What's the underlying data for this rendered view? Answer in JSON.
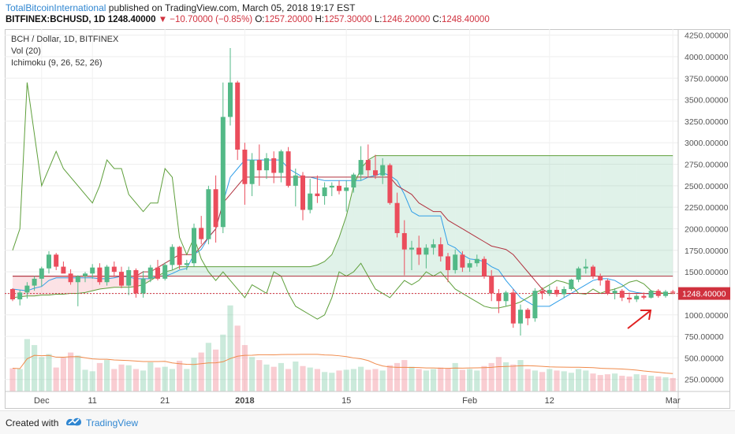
{
  "header": {
    "author": "TotalBitcoinInternational",
    "published_text": "published on TradingView.com, March 05, 2018 19:17 EST",
    "symbol": "BITFINEX:BCHUSD, 1D",
    "last_price": "1248.40000",
    "change": "▼ −10.70000 (−0.85%)",
    "open_label": "O:",
    "open": "1257.20000",
    "high_label": "H:",
    "high": "1257.30000",
    "low_label": "L:",
    "low": "1246.20000",
    "close_label": "C:",
    "close": "1248.40000"
  },
  "legend": {
    "title": "BCH / Dollar, 1D, BITFINEX",
    "volume": "Vol (20)",
    "ichimoku": "Ichimoku (9, 26, 52, 26)"
  },
  "footer": {
    "created_with": "Created with",
    "brand": "TradingView"
  },
  "chart_data": {
    "type": "candlestick",
    "title": "BCH / Dollar, 1D, BITFINEX",
    "y_ticks": [
      "250.00000",
      "500.00000",
      "750.00000",
      "1000.00000",
      "1250.00000",
      "1500.00000",
      "1750.00000",
      "2000.00000",
      "2250.00000",
      "2500.00000",
      "2750.00000",
      "3000.00000",
      "3250.00000",
      "3500.00000",
      "3750.00000",
      "4000.00000",
      "4250.00000"
    ],
    "y_tick_values": [
      250,
      500,
      750,
      1000,
      1250,
      1500,
      1750,
      2000,
      2250,
      2500,
      2750,
      3000,
      3250,
      3500,
      3750,
      4000,
      4250
    ],
    "ylim": [
      110,
      4320
    ],
    "last_price_label": "1248.40000",
    "last_price": 1248.4,
    "x_labels": [
      {
        "label": "Dec",
        "day": 4
      },
      {
        "label": "11",
        "day": 11
      },
      {
        "label": "21",
        "day": 21
      },
      {
        "label": "2018",
        "day": 32
      },
      {
        "label": "15",
        "day": 46
      },
      {
        "label": "Feb",
        "day": 63
      },
      {
        "label": "12",
        "day": 74
      },
      {
        "label": "Mar",
        "day": 91
      }
    ],
    "candles": [
      [
        1300,
        1310,
        1160,
        1180
      ],
      [
        1180,
        1290,
        1110,
        1260
      ],
      [
        1260,
        1380,
        1190,
        1340
      ],
      [
        1340,
        1450,
        1280,
        1420
      ],
      [
        1420,
        1560,
        1330,
        1540
      ],
      [
        1540,
        1740,
        1480,
        1700
      ],
      [
        1700,
        1720,
        1520,
        1560
      ],
      [
        1560,
        1620,
        1520,
        1480
      ],
      [
        1480,
        1530,
        1350,
        1380
      ],
      [
        1380,
        1460,
        1100,
        1450
      ],
      [
        1450,
        1500,
        1380,
        1480
      ],
      [
        1480,
        1590,
        1420,
        1550
      ],
      [
        1550,
        1600,
        1350,
        1380
      ],
      [
        1380,
        1580,
        1340,
        1560
      ],
      [
        1560,
        1620,
        1440,
        1500
      ],
      [
        1500,
        1560,
        1310,
        1340
      ],
      [
        1340,
        1560,
        1230,
        1520
      ],
      [
        1520,
        1540,
        1200,
        1250
      ],
      [
        1250,
        1510,
        1200,
        1420
      ],
      [
        1420,
        1580,
        1380,
        1550
      ],
      [
        1550,
        1640,
        1400,
        1420
      ],
      [
        1420,
        1610,
        1400,
        1580
      ],
      [
        1580,
        1820,
        1520,
        1790
      ],
      [
        1790,
        1800,
        1530,
        1580
      ],
      [
        1580,
        1640,
        1520,
        1600
      ],
      [
        1600,
        2060,
        1560,
        2010
      ],
      [
        2010,
        2150,
        1820,
        1880
      ],
      [
        1880,
        2500,
        1820,
        2460
      ],
      [
        2460,
        2620,
        1840,
        2020
      ],
      [
        2020,
        3700,
        1950,
        3300
      ],
      [
        3300,
        4100,
        3200,
        3700
      ],
      [
        3700,
        3720,
        2800,
        2920
      ],
      [
        2920,
        3000,
        2280,
        2520
      ],
      [
        2520,
        2880,
        2380,
        2800
      ],
      [
        2800,
        2980,
        2500,
        2680
      ],
      [
        2680,
        2880,
        2580,
        2820
      ],
      [
        2820,
        2900,
        2530,
        2650
      ],
      [
        2650,
        2920,
        2540,
        2900
      ],
      [
        2900,
        2950,
        2480,
        2500
      ],
      [
        2500,
        2700,
        2260,
        2620
      ],
      [
        2620,
        2660,
        2100,
        2220
      ],
      [
        2220,
        2580,
        2180,
        2410
      ],
      [
        2410,
        2620,
        2300,
        2380
      ],
      [
        2380,
        2540,
        2280,
        2480
      ],
      [
        2480,
        2540,
        2380,
        2500
      ],
      [
        2500,
        2560,
        2400,
        2440
      ],
      [
        2440,
        2560,
        2200,
        2480
      ],
      [
        2480,
        2650,
        2420,
        2630
      ],
      [
        2630,
        2960,
        2560,
        2800
      ],
      [
        2800,
        2980,
        2600,
        2680
      ],
      [
        2680,
        2860,
        2580,
        2620
      ],
      [
        2620,
        2820,
        2520,
        2740
      ],
      [
        2740,
        2760,
        2280,
        2300
      ],
      [
        2300,
        2420,
        1900,
        1950
      ],
      [
        1950,
        2100,
        1460,
        1760
      ],
      [
        1760,
        1860,
        1520,
        1780
      ],
      [
        1780,
        1920,
        1580,
        1700
      ],
      [
        1700,
        1820,
        1540,
        1780
      ],
      [
        1780,
        1880,
        1700,
        1820
      ],
      [
        1820,
        1900,
        1620,
        1680
      ],
      [
        1680,
        1720,
        1380,
        1520
      ],
      [
        1520,
        1760,
        1480,
        1700
      ],
      [
        1700,
        1740,
        1500,
        1550
      ],
      [
        1550,
        1640,
        1500,
        1600
      ],
      [
        1600,
        1700,
        1560,
        1650
      ],
      [
        1650,
        1680,
        1420,
        1450
      ],
      [
        1450,
        1520,
        1160,
        1250
      ],
      [
        1250,
        1300,
        1020,
        1160
      ],
      [
        1160,
        1280,
        1100,
        1260
      ],
      [
        1260,
        1300,
        850,
        900
      ],
      [
        900,
        1120,
        760,
        1060
      ],
      [
        1060,
        1080,
        880,
        960
      ],
      [
        960,
        1310,
        920,
        1280
      ],
      [
        1280,
        1320,
        1180,
        1250
      ],
      [
        1250,
        1340,
        1220,
        1290
      ],
      [
        1290,
        1330,
        1210,
        1240
      ],
      [
        1240,
        1330,
        1200,
        1300
      ],
      [
        1300,
        1420,
        1280,
        1410
      ],
      [
        1410,
        1560,
        1380,
        1540
      ],
      [
        1540,
        1650,
        1480,
        1560
      ],
      [
        1560,
        1580,
        1420,
        1450
      ],
      [
        1450,
        1480,
        1340,
        1400
      ],
      [
        1400,
        1420,
        1230,
        1250
      ],
      [
        1250,
        1310,
        1180,
        1280
      ],
      [
        1280,
        1300,
        1160,
        1200
      ],
      [
        1200,
        1260,
        1140,
        1180
      ],
      [
        1180,
        1240,
        1150,
        1220
      ],
      [
        1220,
        1260,
        1180,
        1200
      ],
      [
        1200,
        1290,
        1190,
        1280
      ],
      [
        1280,
        1300,
        1200,
        1220
      ],
      [
        1220,
        1290,
        1200,
        1270
      ],
      [
        1270,
        1290,
        1240,
        1258
      ],
      [
        1257.2,
        1257.3,
        1246.2,
        1248.4
      ]
    ],
    "volume": [
      310,
      300,
      700,
      620,
      460,
      500,
      320,
      450,
      520,
      480,
      290,
      270,
      380,
      420,
      300,
      360,
      350,
      300,
      280,
      390,
      320,
      330,
      300,
      410,
      300,
      450,
      520,
      650,
      560,
      760,
      1150,
      880,
      620,
      460,
      420,
      360,
      330,
      380,
      300,
      400,
      340,
      320,
      300,
      260,
      250,
      280,
      290,
      300,
      330,
      290,
      300,
      280,
      350,
      380,
      420,
      330,
      300,
      280,
      300,
      320,
      310,
      380,
      290,
      300,
      280,
      340,
      380,
      460,
      390,
      360,
      420,
      300,
      280,
      260,
      300,
      280,
      270,
      250,
      300,
      280,
      240,
      220,
      230,
      240,
      210,
      200,
      230,
      220,
      210,
      200,
      190,
      180
    ],
    "series": [
      {
        "name": "Tenkan-sen",
        "color": "#2f9ee8",
        "values": [
          1300,
          1290,
          1280,
          1310,
          1330,
          1400,
          1430,
          1430,
          1430,
          1430,
          1430,
          1430,
          1420,
          1420,
          1430,
          1450,
          1440,
          1420,
          1420,
          1420,
          1450,
          1450,
          1480,
          1520,
          1540,
          1700,
          1760,
          1900,
          2000,
          2300,
          2600,
          2700,
          2800,
          2800,
          2800,
          2800,
          2800,
          2800,
          2700,
          2650,
          2600,
          2600,
          2580,
          2560,
          2560,
          2560,
          2560,
          2560,
          2560,
          2600,
          2620,
          2650,
          2620,
          2560,
          2400,
          2200,
          2150,
          2150,
          2150,
          2150,
          1820,
          1780,
          1700,
          1650,
          1640,
          1620,
          1560,
          1520,
          1400,
          1300,
          1200,
          1150,
          1100,
          1100,
          1100,
          1150,
          1200,
          1250,
          1300,
          1350,
          1400,
          1420,
          1420,
          1400,
          1350,
          1280,
          1260,
          1250,
          1240,
          1250,
          1250,
          1250
        ]
      },
      {
        "name": "Kijun-sen",
        "color": "#b1323f",
        "values": [
          1450,
          1450,
          1450,
          1450,
          1450,
          1450,
          1450,
          1450,
          1450,
          1450,
          1450,
          1450,
          1450,
          1450,
          1450,
          1450,
          1450,
          1450,
          1500,
          1500,
          1550,
          1600,
          1650,
          1700,
          1700,
          1700,
          1800,
          1900,
          2000,
          2300,
          2400,
          2500,
          2600,
          2600,
          2600,
          2600,
          2600,
          2600,
          2600,
          2600,
          2600,
          2600,
          2600,
          2600,
          2600,
          2600,
          2600,
          2600,
          2600,
          2600,
          2600,
          2600,
          2600,
          2500,
          2450,
          2400,
          2300,
          2250,
          2200,
          2200,
          2100,
          2050,
          2000,
          1950,
          1900,
          1850,
          1800,
          1780,
          1760,
          1700,
          1600,
          1500,
          1400,
          1300,
          1250,
          1250,
          1250,
          1250,
          1250,
          1250,
          1250,
          1250,
          1250,
          1250,
          1250,
          1250,
          1250,
          1250,
          1250,
          1250,
          1250,
          1250
        ]
      },
      {
        "name": "Chikou Span",
        "color": "#5e9f3b",
        "values": [
          1750,
          2000,
          3700,
          3100,
          2500,
          2700,
          2900,
          2700,
          2600,
          2500,
          2400,
          2300,
          2500,
          2800,
          2700,
          2700,
          2400,
          2300,
          2200,
          2300,
          2300,
          2700,
          2600,
          1900,
          1700,
          1900,
          1650,
          1500,
          1400,
          1500,
          1400,
          1300,
          1200,
          1350,
          1300,
          1250,
          1500,
          1450,
          1250,
          1100,
          1050,
          1000,
          950,
          1000,
          1200,
          1500,
          1450,
          1500,
          1600,
          1450,
          1300,
          1250,
          1200,
          1300,
          1400,
          1350,
          1400,
          1500,
          1450,
          1500,
          1400,
          1300,
          1250,
          1200,
          1150,
          1100,
          1080,
          1080,
          1100,
          1120,
          1150,
          1200,
          1250,
          1300,
          1350,
          1400,
          1380,
          1350,
          1250,
          1240,
          1300,
          1250,
          1280,
          1300,
          1330,
          1380,
          1400,
          1360,
          1280,
          1260,
          1250,
          1248
        ]
      },
      {
        "name": "Senkou Span A",
        "color": "#5e9f3b",
        "values": [
          1200,
          1210,
          1220,
          1220,
          1230,
          1230,
          1240,
          1240,
          1250,
          1250,
          1260,
          1280,
          1300,
          1310,
          1320,
          1320,
          1320,
          1330,
          1350,
          1400,
          1450,
          1500,
          1520,
          1560,
          1560,
          1560,
          1560,
          1560,
          1560,
          1560,
          1560,
          1560,
          1560,
          1560,
          1560,
          1560,
          1560,
          1560,
          1560,
          1560,
          1560,
          1560,
          1580,
          1620,
          1700,
          1900,
          2150,
          2500,
          2700,
          2800,
          2850,
          2850,
          2850,
          2850,
          2850,
          2850,
          2850,
          2850,
          2850,
          2850,
          2850,
          2850,
          2850,
          2850,
          2850,
          2850,
          2850,
          2850,
          2850,
          2850,
          2850,
          2850,
          2850,
          2850,
          2850,
          2850,
          2850,
          2850,
          2850,
          2850,
          2850,
          2850,
          2850,
          2850,
          2850,
          2850,
          2850,
          2850,
          2850,
          2850,
          2850,
          2850
        ]
      },
      {
        "name": "Senkou Span B",
        "color": "#b1323f",
        "values": [
          1450,
          1450,
          1450,
          1450,
          1450,
          1450,
          1450,
          1450,
          1450,
          1450,
          1450,
          1450,
          1450,
          1450,
          1450,
          1450,
          1450,
          1450,
          1450,
          1450,
          1450,
          1450,
          1450,
          1450,
          1450,
          1450,
          1450,
          1450,
          1450,
          1450,
          1450,
          1450,
          1450,
          1450,
          1450,
          1450,
          1450,
          1450,
          1450,
          1450,
          1450,
          1450,
          1450,
          1450,
          1450,
          1450,
          1450,
          1450,
          1450,
          1450,
          1450,
          1450,
          1450,
          1450,
          1450,
          1450,
          1450,
          1450,
          1450,
          1450,
          1450,
          1450,
          1450,
          1450,
          1450,
          1450,
          1450,
          1450,
          1450,
          1450,
          1450,
          1450,
          1450,
          1450,
          1450,
          1450,
          1450,
          1450,
          1450,
          1450,
          1450,
          1450,
          1450,
          1450,
          1450,
          1450,
          1450,
          1450,
          1450,
          1450,
          1450,
          1450
        ]
      }
    ],
    "volume_ma_color": "#f08a4b",
    "up_color": "#53b987",
    "down_color": "#eb4d5c",
    "price_line_color": "#d0313e",
    "cloud_bull_color": "rgba(83,185,135,0.18)",
    "cloud_bear_color": "rgba(235,77,92,0.16)",
    "annotation": "arrow pointing up-right at last candle (red)"
  }
}
